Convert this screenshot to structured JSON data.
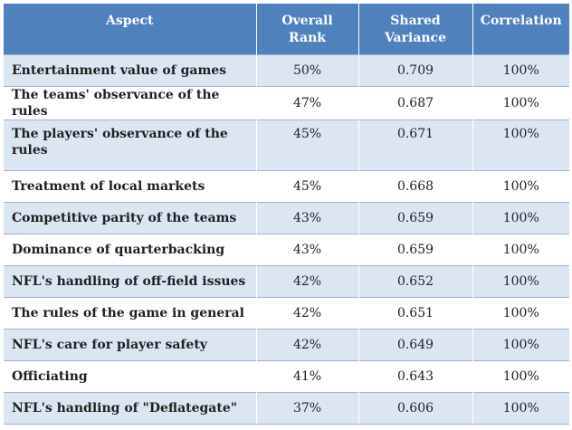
{
  "table": {
    "headers": {
      "aspect": "Aspect",
      "overall_rank": [
        "Overall",
        "Rank"
      ],
      "shared_variance": [
        "Shared",
        "Variance"
      ],
      "correlation": "Correlation"
    },
    "rows": [
      {
        "aspect": "Entertainment value of games",
        "rank": "50%",
        "variance": "0.709",
        "correlation": "100%"
      },
      {
        "aspect": "The teams' observance of the rules",
        "rank": "47%",
        "variance": "0.687",
        "correlation": "100%"
      },
      {
        "aspect": "The players' observance of the rules",
        "rank": "45%",
        "variance": "0.671",
        "correlation": "100%"
      },
      {
        "aspect": "Treatment of local markets",
        "rank": "45%",
        "variance": "0.668",
        "correlation": "100%"
      },
      {
        "aspect": "Competitive parity of the teams",
        "rank": "43%",
        "variance": "0.659",
        "correlation": "100%"
      },
      {
        "aspect": "Dominance of quarterbacking",
        "rank": "43%",
        "variance": "0.659",
        "correlation": "100%"
      },
      {
        "aspect": "NFL's handling of off-field issues",
        "rank": "42%",
        "variance": "0.652",
        "correlation": "100%"
      },
      {
        "aspect": "The rules of the game in general",
        "rank": "42%",
        "variance": "0.651",
        "correlation": "100%"
      },
      {
        "aspect": "NFL's care for player safety",
        "rank": "42%",
        "variance": "0.649",
        "correlation": "100%"
      },
      {
        "aspect": "Officiating",
        "rank": "41%",
        "variance": "0.643",
        "correlation": "100%"
      },
      {
        "aspect": "NFL's handling of \"Deflategate\"",
        "rank": "37%",
        "variance": "0.606",
        "correlation": "100%"
      }
    ]
  },
  "colors": {
    "header_bg": "#4f81bd",
    "band_bg": "#dce6f2",
    "row_bg": "#ffffff",
    "rule": "#9bb3d6"
  }
}
